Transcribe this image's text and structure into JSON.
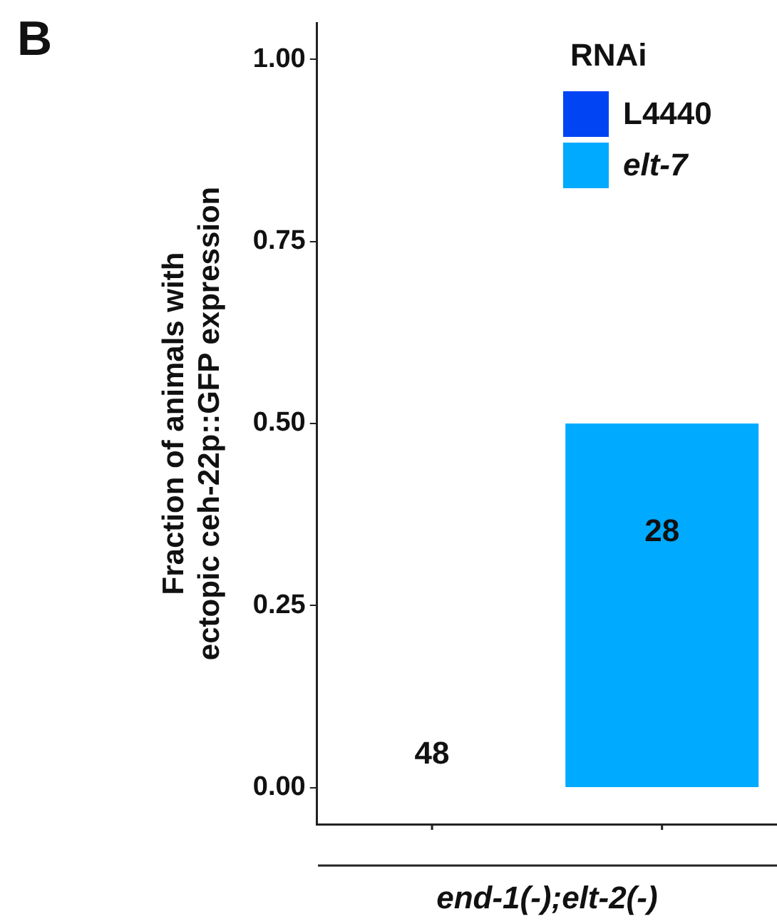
{
  "chart_data": {
    "type": "bar",
    "xlabel": "end-1(-);elt-2(-)",
    "ylabel": "Fraction of animals with\nectopic ceh-22p::GFP expression",
    "legend_title": "RNAi",
    "categories": [
      null,
      null
    ],
    "series": [
      {
        "name": "L4440",
        "color": "#0044f4",
        "values": [
          0,
          null
        ]
      },
      {
        "name": "elt-7",
        "color": "#00aaff",
        "values": [
          null,
          0.5
        ]
      }
    ],
    "ylim": [
      -0.05,
      1.05
    ],
    "yticks": [
      {
        "value": 0,
        "label": "0.00"
      },
      {
        "value": 0.25,
        "label": "0.25"
      },
      {
        "value": 0.5,
        "label": "0.50"
      },
      {
        "value": 0.75,
        "label": "0.75"
      },
      {
        "value": 1,
        "label": "1.00"
      }
    ],
    "grid": false,
    "legend": "top right",
    "annotations": [
      "B",
      "48",
      "28"
    ]
  }
}
